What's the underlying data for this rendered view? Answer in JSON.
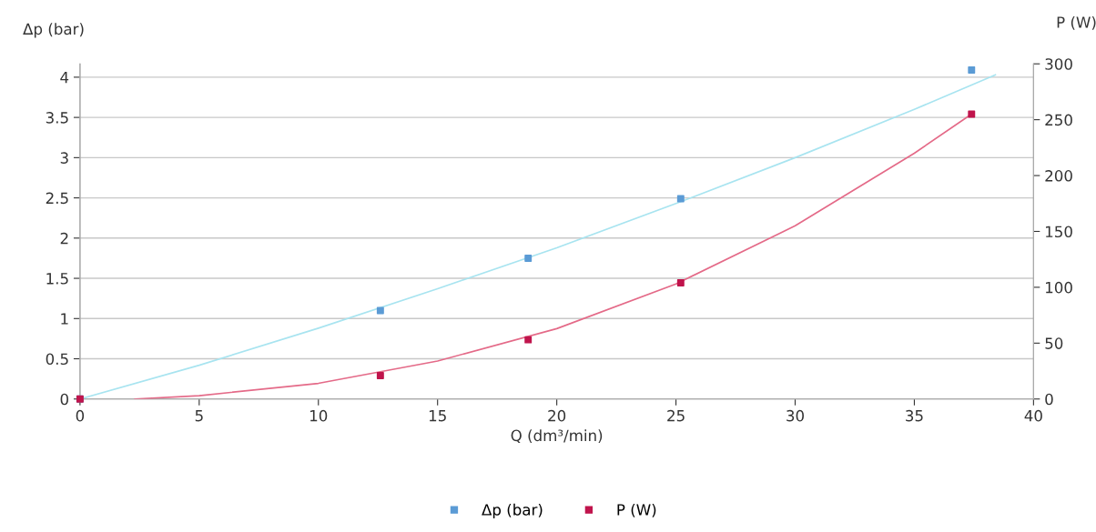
{
  "chart_data": {
    "type": "scatter",
    "xlabel": "Q (dm³/min)",
    "ylabel": "Δp (bar)",
    "y2label": "P (W)",
    "x": [
      0,
      12.6,
      18.8,
      25.2,
      37.4
    ],
    "series": [
      {
        "name": "Δp (bar)",
        "color": "#5b9bd5",
        "values": [
          0,
          1.1,
          1.75,
          2.49,
          4.09
        ],
        "marker": "square"
      },
      {
        "name": "P (W)",
        "color": "#c0144c",
        "values": [
          0,
          21,
          53,
          104,
          255
        ],
        "axis": "y2",
        "marker": "square"
      },
      {
        "type": "line",
        "color": "#a8e4f0",
        "x": [
          0,
          5,
          10,
          15,
          20,
          25,
          30,
          35,
          38.4
        ],
        "values": [
          0,
          0.42,
          0.88,
          1.37,
          1.88,
          2.43,
          3.0,
          3.6,
          4.03
        ],
        "marker": "none"
      },
      {
        "type": "line",
        "color": "#e46a88",
        "axis": "y2",
        "x": [
          2.3,
          5,
          10,
          15,
          20,
          25,
          30,
          35,
          37.4
        ],
        "values": [
          0,
          3,
          14,
          34,
          63,
          103,
          155,
          220,
          255
        ],
        "marker": "none"
      }
    ],
    "xlim": [
      0,
      40
    ],
    "xticks": [
      0,
      5,
      10,
      15,
      20,
      25,
      30,
      35,
      40
    ],
    "ylim": [
      0,
      4.166
    ],
    "yticks": [
      0,
      0.5,
      1,
      1.5,
      2,
      2.5,
      3,
      3.5,
      4
    ],
    "y2lim": [
      0,
      300
    ],
    "y2ticks": [
      0,
      50,
      100,
      150,
      200,
      250,
      300
    ],
    "grid": "y",
    "legend": "bottom"
  }
}
